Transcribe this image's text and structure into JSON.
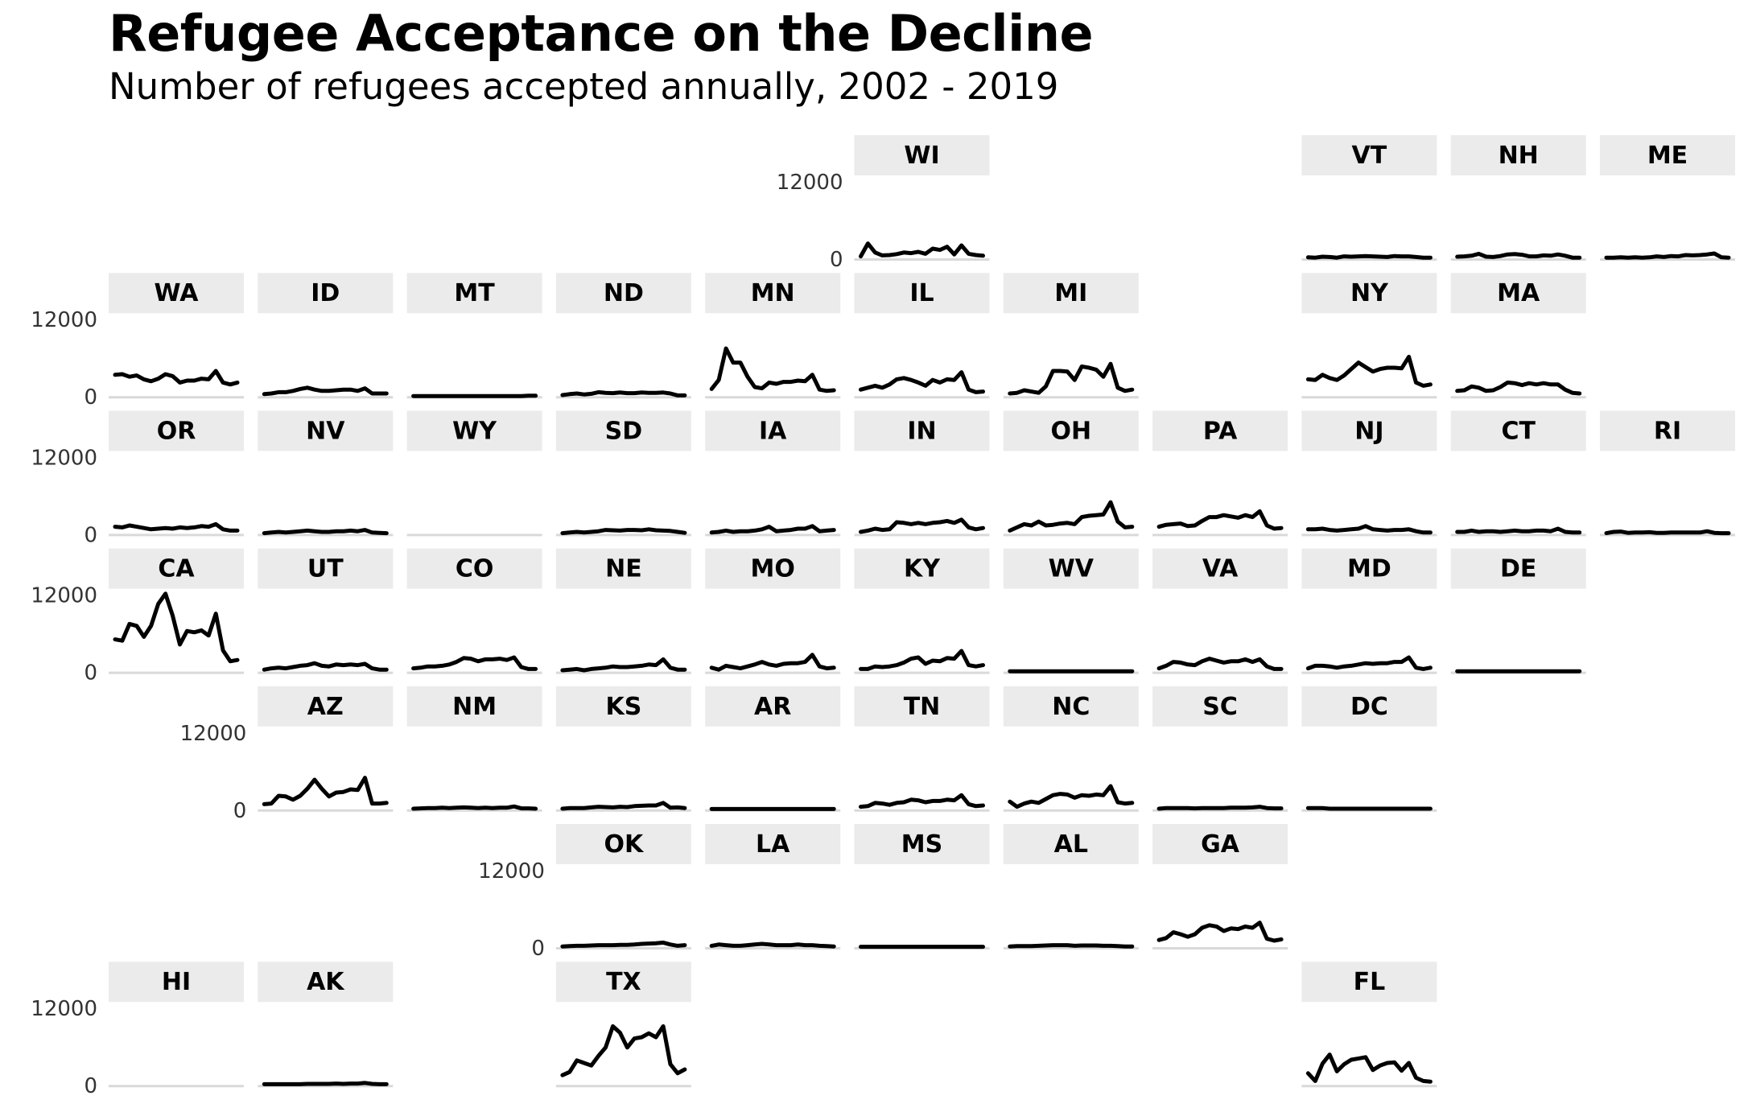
{
  "chart_data": {
    "type": "line",
    "title": "Refugee Acceptance on the Decline",
    "subtitle": "Number of refugees accepted annually, 2002 - 2019",
    "x": [
      2002,
      2003,
      2004,
      2005,
      2006,
      2007,
      2008,
      2009,
      2010,
      2011,
      2012,
      2013,
      2014,
      2015,
      2016,
      2017,
      2018,
      2019
    ],
    "ylim": [
      0,
      12000
    ],
    "y_ticks": [
      "0",
      "12000"
    ],
    "line_color": "#000000",
    "strip_color": "#ebebeb",
    "axis_line_color": "#d9d9d9",
    "panels": [
      {
        "state": "WI",
        "col": 5,
        "row": 0,
        "values": [
          300,
          2300,
          900,
          450,
          500,
          650,
          900,
          800,
          1000,
          700,
          1500,
          1300,
          1800,
          600,
          2000,
          700,
          500,
          400
        ]
      },
      {
        "state": "VT",
        "col": 8,
        "row": 0,
        "values": [
          150,
          100,
          250,
          200,
          100,
          300,
          250,
          300,
          350,
          300,
          250,
          200,
          350,
          300,
          300,
          200,
          100,
          100
        ]
      },
      {
        "state": "NH",
        "col": 9,
        "row": 0,
        "values": [
          250,
          300,
          400,
          700,
          250,
          200,
          350,
          600,
          650,
          550,
          300,
          300,
          450,
          400,
          600,
          400,
          100,
          100
        ]
      },
      {
        "state": "ME",
        "col": 10,
        "row": 0,
        "values": [
          100,
          100,
          150,
          100,
          150,
          100,
          150,
          300,
          200,
          350,
          300,
          500,
          450,
          500,
          600,
          750,
          150,
          100
        ]
      },
      {
        "state": "WA",
        "col": 0,
        "row": 1,
        "values": [
          3300,
          3400,
          3000,
          3200,
          2600,
          2300,
          2700,
          3400,
          3100,
          2100,
          2400,
          2400,
          2700,
          2600,
          3900,
          2100,
          1800,
          2100
        ]
      },
      {
        "state": "ID",
        "col": 1,
        "row": 1,
        "values": [
          300,
          400,
          600,
          600,
          800,
          1100,
          1300,
          1000,
          800,
          800,
          900,
          1000,
          1000,
          800,
          1200,
          400,
          400,
          400
        ]
      },
      {
        "state": "MT",
        "col": 2,
        "row": 1,
        "values": [
          0,
          0,
          0,
          0,
          0,
          0,
          0,
          0,
          0,
          0,
          0,
          0,
          0,
          0,
          0,
          0,
          50,
          50
        ]
      },
      {
        "state": "ND",
        "col": 3,
        "row": 1,
        "values": [
          150,
          300,
          400,
          250,
          350,
          600,
          500,
          450,
          550,
          450,
          450,
          550,
          500,
          500,
          550,
          400,
          100,
          100
        ]
      },
      {
        "state": "MN",
        "col": 4,
        "row": 1,
        "values": [
          1100,
          2500,
          7400,
          5200,
          5200,
          3000,
          1400,
          1200,
          2100,
          1900,
          2200,
          2200,
          2400,
          2300,
          3300,
          1000,
          800,
          900
        ]
      },
      {
        "state": "IL",
        "col": 5,
        "row": 1,
        "values": [
          1000,
          1300,
          1600,
          1300,
          1800,
          2600,
          2800,
          2500,
          2100,
          1600,
          2500,
          2100,
          2600,
          2500,
          3700,
          1000,
          600,
          700
        ]
      },
      {
        "state": "MI",
        "col": 6,
        "row": 1,
        "values": [
          400,
          500,
          900,
          700,
          500,
          1500,
          3900,
          3900,
          3800,
          2500,
          4600,
          4400,
          4100,
          3000,
          5000,
          1300,
          800,
          1000
        ]
      },
      {
        "state": "NY",
        "col": 8,
        "row": 1,
        "values": [
          2600,
          2500,
          3300,
          2800,
          2500,
          3200,
          4200,
          5200,
          4500,
          3800,
          4200,
          4400,
          4400,
          4300,
          6100,
          2100,
          1600,
          1800
        ]
      },
      {
        "state": "MA",
        "col": 9,
        "row": 1,
        "values": [
          800,
          900,
          1500,
          1300,
          800,
          900,
          1400,
          2100,
          2000,
          1700,
          2000,
          1800,
          2000,
          1800,
          1800,
          1000,
          500,
          400
        ]
      },
      {
        "state": "OR",
        "col": 0,
        "row": 2,
        "values": [
          1100,
          1000,
          1300,
          1100,
          900,
          700,
          800,
          900,
          800,
          1000,
          900,
          1000,
          1200,
          1100,
          1500,
          700,
          500,
          500
        ]
      },
      {
        "state": "NV",
        "col": 1,
        "row": 2,
        "values": [
          100,
          200,
          300,
          200,
          300,
          400,
          500,
          400,
          300,
          300,
          400,
          400,
          500,
          400,
          600,
          200,
          150,
          100
        ]
      },
      {
        "state": "WY",
        "col": 2,
        "row": 2,
        "values": []
      },
      {
        "state": "SD",
        "col": 3,
        "row": 2,
        "values": [
          100,
          200,
          300,
          200,
          300,
          400,
          600,
          550,
          500,
          600,
          600,
          550,
          700,
          550,
          500,
          450,
          300,
          150
        ]
      },
      {
        "state": "IA",
        "col": 4,
        "row": 2,
        "values": [
          200,
          300,
          500,
          300,
          400,
          400,
          500,
          700,
          1100,
          400,
          500,
          600,
          800,
          800,
          1200,
          400,
          500,
          600
        ]
      },
      {
        "state": "IN",
        "col": 5,
        "row": 2,
        "values": [
          300,
          500,
          800,
          600,
          700,
          1800,
          1700,
          1500,
          1700,
          1500,
          1700,
          1800,
          2000,
          1700,
          2200,
          1000,
          700,
          900
        ]
      },
      {
        "state": "OH",
        "col": 6,
        "row": 2,
        "values": [
          500,
          1000,
          1500,
          1300,
          1900,
          1300,
          1400,
          1600,
          1700,
          1500,
          2600,
          2800,
          2900,
          3000,
          4900,
          1900,
          1000,
          1100
        ]
      },
      {
        "state": "PA",
        "col": 7,
        "row": 2,
        "values": [
          1100,
          1400,
          1500,
          1600,
          1200,
          1300,
          2000,
          2600,
          2600,
          2900,
          2700,
          2500,
          2900,
          2600,
          3500,
          1300,
          800,
          900
        ]
      },
      {
        "state": "NJ",
        "col": 8,
        "row": 2,
        "values": [
          700,
          700,
          800,
          600,
          500,
          600,
          700,
          800,
          1200,
          700,
          600,
          500,
          600,
          600,
          700,
          400,
          200,
          200
        ]
      },
      {
        "state": "CT",
        "col": 9,
        "row": 2,
        "values": [
          300,
          300,
          500,
          300,
          400,
          400,
          300,
          400,
          500,
          400,
          400,
          500,
          500,
          400,
          800,
          300,
          200,
          200
        ]
      },
      {
        "state": "RI",
        "col": 10,
        "row": 2,
        "values": [
          100,
          300,
          350,
          150,
          200,
          200,
          250,
          150,
          150,
          200,
          200,
          200,
          200,
          200,
          400,
          150,
          100,
          100
        ]
      },
      {
        "state": "CA",
        "col": 0,
        "row": 3,
        "values": [
          5000,
          4800,
          7400,
          7100,
          5400,
          7100,
          10500,
          12100,
          8700,
          4200,
          6300,
          6100,
          6400,
          5600,
          9000,
          3300,
          1600,
          1800
        ]
      },
      {
        "state": "UT",
        "col": 1,
        "row": 3,
        "values": [
          300,
          500,
          600,
          500,
          700,
          900,
          1000,
          1300,
          900,
          800,
          1100,
          1000,
          1100,
          1000,
          1200,
          500,
          300,
          300
        ]
      },
      {
        "state": "CO",
        "col": 2,
        "row": 3,
        "values": [
          500,
          600,
          800,
          800,
          900,
          1100,
          1500,
          2100,
          2000,
          1600,
          1900,
          1900,
          2000,
          1800,
          2200,
          700,
          400,
          400
        ]
      },
      {
        "state": "NE",
        "col": 3,
        "row": 3,
        "values": [
          200,
          300,
          400,
          200,
          400,
          500,
          600,
          800,
          700,
          700,
          800,
          900,
          1100,
          1000,
          1900,
          600,
          300,
          300
        ]
      },
      {
        "state": "MO",
        "col": 4,
        "row": 3,
        "values": [
          600,
          300,
          900,
          700,
          500,
          800,
          1100,
          1500,
          1100,
          900,
          1200,
          1300,
          1300,
          1500,
          2600,
          800,
          500,
          600
        ]
      },
      {
        "state": "KY",
        "col": 5,
        "row": 3,
        "values": [
          400,
          400,
          800,
          700,
          800,
          1000,
          1400,
          2000,
          2200,
          1200,
          1700,
          1600,
          2100,
          2000,
          3200,
          1000,
          800,
          1000
        ]
      },
      {
        "state": "WV",
        "col": 6,
        "row": 3,
        "values": [
          50,
          50,
          50,
          50,
          50,
          50,
          50,
          50,
          50,
          50,
          50,
          50,
          50,
          50,
          50,
          50,
          50,
          50
        ]
      },
      {
        "state": "VA",
        "col": 7,
        "row": 3,
        "values": [
          500,
          900,
          1500,
          1400,
          1100,
          1000,
          1600,
          2000,
          1700,
          1400,
          1600,
          1600,
          1900,
          1500,
          1900,
          800,
          400,
          400
        ]
      },
      {
        "state": "MD",
        "col": 8,
        "row": 3,
        "values": [
          500,
          900,
          900,
          800,
          600,
          800,
          900,
          1100,
          1300,
          1200,
          1300,
          1300,
          1500,
          1500,
          2200,
          600,
          400,
          600
        ]
      },
      {
        "state": "DE",
        "col": 9,
        "row": 3,
        "values": [
          50,
          50,
          50,
          50,
          50,
          50,
          50,
          50,
          50,
          50,
          50,
          50,
          50,
          50,
          50,
          50,
          50,
          50
        ]
      },
      {
        "state": "AZ",
        "col": 1,
        "row": 4,
        "values": [
          800,
          900,
          2100,
          2000,
          1500,
          2100,
          3200,
          4600,
          3200,
          2000,
          2600,
          2700,
          3100,
          3000,
          4900,
          900,
          900,
          1000
        ]
      },
      {
        "state": "NM",
        "col": 2,
        "row": 4,
        "values": [
          100,
          150,
          200,
          200,
          250,
          200,
          250,
          300,
          250,
          200,
          250,
          200,
          250,
          250,
          450,
          150,
          150,
          100
        ]
      },
      {
        "state": "KS",
        "col": 3,
        "row": 4,
        "values": [
          100,
          200,
          200,
          200,
          300,
          400,
          350,
          300,
          400,
          350,
          500,
          550,
          600,
          600,
          1000,
          250,
          300,
          200
        ]
      },
      {
        "state": "AR",
        "col": 4,
        "row": 4,
        "values": [
          50,
          50,
          50,
          50,
          50,
          50,
          50,
          50,
          50,
          50,
          50,
          50,
          50,
          50,
          50,
          50,
          50,
          50
        ]
      },
      {
        "state": "TN",
        "col": 5,
        "row": 4,
        "values": [
          400,
          500,
          1000,
          900,
          700,
          1000,
          1100,
          1500,
          1400,
          1100,
          1300,
          1300,
          1500,
          1400,
          2200,
          800,
          500,
          600
        ]
      },
      {
        "state": "NC",
        "col": 6,
        "row": 4,
        "values": [
          1200,
          400,
          900,
          1200,
          1000,
          1600,
          2200,
          2400,
          2300,
          1800,
          2200,
          2100,
          2300,
          2200,
          3600,
          1100,
          900,
          1000
        ]
      },
      {
        "state": "SC",
        "col": 7,
        "row": 4,
        "values": [
          100,
          200,
          200,
          200,
          200,
          150,
          200,
          200,
          200,
          200,
          250,
          250,
          250,
          300,
          400,
          200,
          150,
          150
        ]
      },
      {
        "state": "DC",
        "col": 8,
        "row": 4,
        "values": [
          200,
          200,
          200,
          100,
          100,
          100,
          100,
          100,
          100,
          100,
          100,
          100,
          100,
          100,
          100,
          100,
          100,
          100
        ]
      },
      {
        "state": "OK",
        "col": 3,
        "row": 5,
        "values": [
          100,
          150,
          200,
          200,
          250,
          300,
          300,
          300,
          350,
          350,
          400,
          500,
          550,
          600,
          700,
          400,
          200,
          300
        ]
      },
      {
        "state": "LA",
        "col": 4,
        "row": 5,
        "values": [
          200,
          400,
          300,
          200,
          200,
          300,
          400,
          500,
          400,
          300,
          300,
          300,
          400,
          300,
          300,
          200,
          150,
          100
        ]
      },
      {
        "state": "MS",
        "col": 5,
        "row": 5,
        "values": [
          50,
          50,
          50,
          50,
          50,
          50,
          50,
          50,
          50,
          50,
          50,
          50,
          50,
          50,
          50,
          50,
          50,
          50
        ]
      },
      {
        "state": "AL",
        "col": 6,
        "row": 5,
        "values": [
          100,
          150,
          150,
          150,
          200,
          250,
          300,
          300,
          300,
          200,
          250,
          250,
          250,
          200,
          200,
          150,
          100,
          100
        ]
      },
      {
        "state": "GA",
        "col": 7,
        "row": 5,
        "values": [
          1100,
          1400,
          2300,
          2000,
          1600,
          2000,
          3000,
          3400,
          3200,
          2500,
          2900,
          2800,
          3200,
          3000,
          3800,
          1300,
          1000,
          1200
        ]
      },
      {
        "state": "HI",
        "col": 0,
        "row": 6,
        "values": []
      },
      {
        "state": "AK",
        "col": 1,
        "row": 6,
        "values": [
          100,
          100,
          100,
          100,
          100,
          100,
          150,
          150,
          150,
          150,
          200,
          150,
          200,
          200,
          300,
          150,
          100,
          100
        ]
      },
      {
        "state": "TX",
        "col": 3,
        "row": 6,
        "values": [
          1500,
          2000,
          3800,
          3400,
          3000,
          4500,
          5800,
          9100,
          8100,
          5800,
          7200,
          7400,
          8000,
          7400,
          9100,
          3200,
          1800,
          2400
        ]
      },
      {
        "state": "FL",
        "col": 8,
        "row": 6,
        "values": [
          1800,
          600,
          3300,
          4700,
          2100,
          3200,
          3900,
          4100,
          4300,
          2300,
          3000,
          3400,
          3500,
          2200,
          3400,
          1100,
          600,
          500
        ]
      }
    ]
  }
}
